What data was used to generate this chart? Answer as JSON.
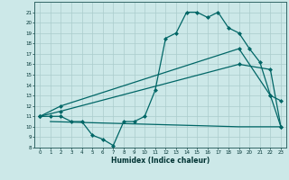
{
  "title": "",
  "xlabel": "Humidex (Indice chaleur)",
  "background_color": "#cce8e8",
  "grid_color": "#aacccc",
  "line_color": "#006666",
  "xlim": [
    -0.5,
    23.5
  ],
  "ylim": [
    8,
    22
  ],
  "xticks": [
    0,
    1,
    2,
    3,
    4,
    5,
    6,
    7,
    8,
    9,
    10,
    11,
    12,
    13,
    14,
    15,
    16,
    17,
    18,
    19,
    20,
    21,
    22,
    23
  ],
  "yticks": [
    8,
    9,
    10,
    11,
    12,
    13,
    14,
    15,
    16,
    17,
    18,
    19,
    20,
    21
  ],
  "series": [
    {
      "x": [
        0,
        1,
        2,
        3,
        4,
        5,
        6,
        7,
        8,
        9,
        10,
        11,
        12,
        13,
        14,
        15,
        16,
        17,
        18,
        19,
        20,
        21,
        22,
        23
      ],
      "y": [
        11,
        11,
        11,
        10.5,
        10.5,
        9.2,
        8.8,
        8.2,
        10.5,
        10.5,
        11,
        13.5,
        18.5,
        19,
        21,
        21,
        20.5,
        21,
        19.5,
        19,
        17.5,
        16.2,
        13,
        12.5
      ],
      "marker": true
    },
    {
      "x": [
        0,
        2,
        19,
        22,
        23
      ],
      "y": [
        11,
        12,
        17.5,
        13,
        10
      ],
      "marker": true
    },
    {
      "x": [
        0,
        2,
        19,
        22,
        23
      ],
      "y": [
        11,
        11.5,
        16,
        15.5,
        10
      ],
      "marker": true
    },
    {
      "x": [
        1,
        19,
        22,
        23
      ],
      "y": [
        10.5,
        10,
        10,
        10
      ],
      "marker": false
    }
  ]
}
